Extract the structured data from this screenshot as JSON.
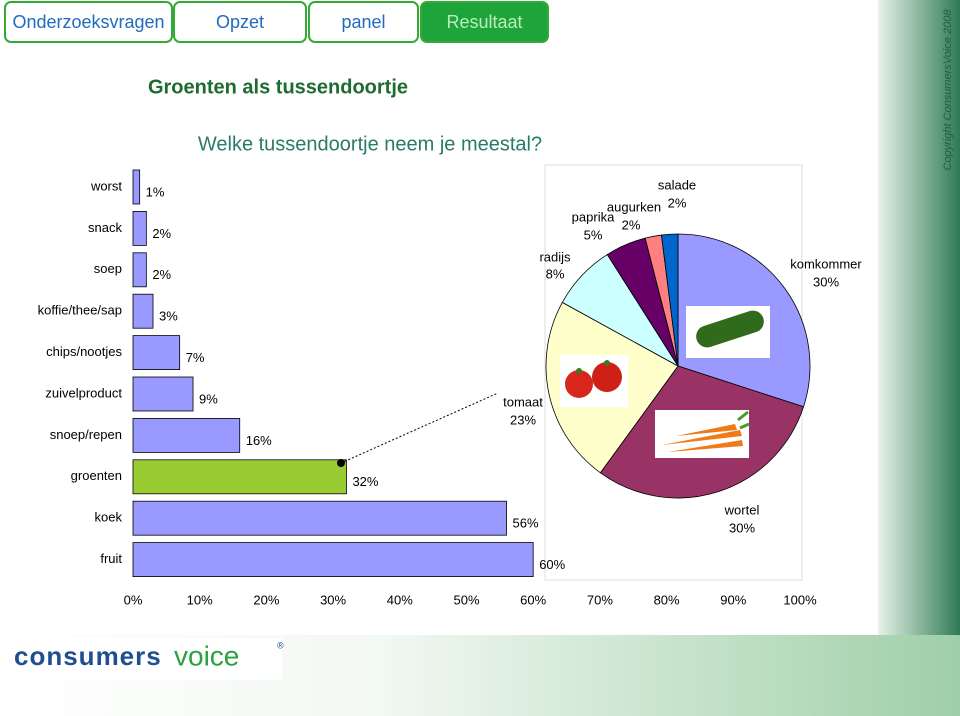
{
  "tabs": [
    "Onderzoeksvragen",
    "Opzet",
    "panel",
    "Resultaat"
  ],
  "header": {
    "title": "Groenten als tussendoortje",
    "subtitle": "Welke tussendoortje neem je meestal?"
  },
  "copyright": "Copyright ConsumersVoice 2008",
  "logo": {
    "word1": "consumers",
    "word2": "voice",
    "mark": "®"
  },
  "chart_data": [
    {
      "type": "bar",
      "categories": [
        "worst",
        "snack",
        "soep",
        "koffie/thee/sap",
        "chips/nootjes",
        "zuivelproduct",
        "snoep/repen",
        "groenten",
        "koek",
        "fruit"
      ],
      "values": [
        1,
        2,
        2,
        3,
        7,
        9,
        16,
        32,
        56,
        60
      ],
      "value_labels": [
        "1%",
        "2%",
        "2%",
        "3%",
        "7%",
        "9%",
        "16%",
        "32%",
        "56%",
        "60%"
      ],
      "colors": [
        "#9999ff",
        "#9999ff",
        "#9999ff",
        "#9999ff",
        "#9999ff",
        "#9999ff",
        "#9999ff",
        "#99cc33",
        "#9999ff",
        "#9999ff"
      ],
      "xlim": [
        0,
        100
      ],
      "xticks": [
        {
          "value": 0,
          "label": "0%"
        },
        {
          "value": 10,
          "label": "10%"
        },
        {
          "value": 20,
          "label": "20%"
        },
        {
          "value": 30,
          "label": "30%"
        },
        {
          "value": 40,
          "label": "40%"
        },
        {
          "value": 50,
          "label": "50%"
        },
        {
          "value": 60,
          "label": "60%"
        },
        {
          "value": 70,
          "label": "70%"
        },
        {
          "value": 80,
          "label": "80%"
        },
        {
          "value": 90,
          "label": "90%"
        },
        {
          "value": 100,
          "label": "100%"
        }
      ]
    },
    {
      "type": "pie",
      "categories": [
        "komkommer",
        "wortel",
        "tomaat",
        "radijs",
        "paprika",
        "augurken",
        "salade"
      ],
      "values": [
        30,
        30,
        23,
        8,
        5,
        2,
        2
      ],
      "value_labels": [
        "30%",
        "30%",
        "23%",
        "8%",
        "5%",
        "2%",
        "2%"
      ],
      "colors": [
        "#9999ff",
        "#993366",
        "#ffffcc",
        "#ccffff",
        "#660066",
        "#ff8080",
        "#0066cc"
      ]
    }
  ]
}
